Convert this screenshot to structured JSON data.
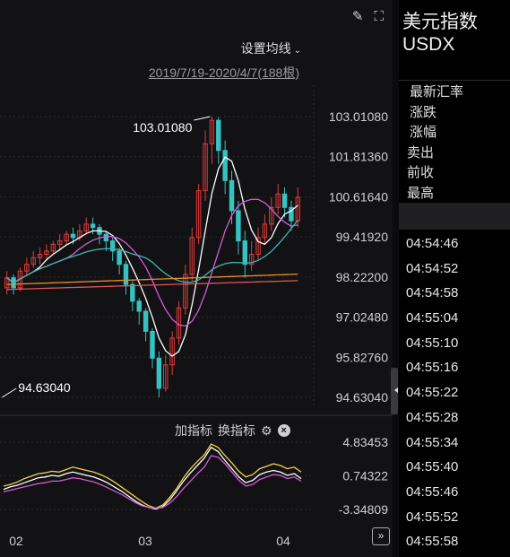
{
  "toolbar": {
    "ma_setting_label": "设置均线",
    "range_label": "2019/7/19-2020/4/7(188根)",
    "draw_icon": "pen-icon",
    "fullscreen_icon": "fullscreen-icon",
    "pin_icon": "pin-icon"
  },
  "sub_toolbar": {
    "add_indicator": "加指标",
    "change_indicator": "换指标",
    "settings_icon": "gear-icon",
    "close_icon": "close-icon"
  },
  "instrument": {
    "name_zh": "美元指数",
    "code": "USDX"
  },
  "quote_labels": [
    "最新汇率",
    "涨跌",
    "涨幅",
    "卖出",
    "前收",
    "最高"
  ],
  "time_list": [
    "04:54:46",
    "04:54:52",
    "04:54:58",
    "04:55:04",
    "04:55:10",
    "04:55:16",
    "04:55:22",
    "04:55:28",
    "04:55:34",
    "04:55:40",
    "04:55:46",
    "04:55:52",
    "04:55:58"
  ],
  "colors": {
    "up": "#e23b3b",
    "down": "#37c2c2",
    "ma_white": "#ffffff",
    "ma_magenta": "#d65ad8",
    "ma_teal": "#3fb5b0",
    "ma_orange": "#e8902a",
    "ma_red": "#e0555a",
    "sub_yellow": "#f0d050",
    "sub_white": "#ffffff",
    "sub_magenta": "#d65ad8"
  },
  "chart_data": [
    {
      "type": "candlestick",
      "y_ticks": [
        "103.01080",
        "101.81360",
        "100.61640",
        "99.41920",
        "98.22200",
        "97.02480",
        "95.82760",
        "94.63040"
      ],
      "ylim": [
        94.6304,
        103.0108
      ],
      "x_ticks": [
        "02",
        "03",
        "04"
      ],
      "annotations": [
        {
          "label": "103.01080",
          "value": 103.0108
        },
        {
          "label": "94.63040",
          "value": 94.6304
        }
      ],
      "candles": [
        [
          97.9,
          98.2,
          98.4,
          97.7
        ],
        [
          98.2,
          97.9,
          98.3,
          97.7
        ],
        [
          97.9,
          98.4,
          98.5,
          97.8
        ],
        [
          98.4,
          98.6,
          98.8,
          98.3
        ],
        [
          98.6,
          98.8,
          99.0,
          98.5
        ],
        [
          98.8,
          98.9,
          99.1,
          98.6
        ],
        [
          98.9,
          99.0,
          99.2,
          98.7
        ],
        [
          99.0,
          99.2,
          99.3,
          98.9
        ],
        [
          99.2,
          99.3,
          99.5,
          99.0
        ],
        [
          99.3,
          99.5,
          99.6,
          99.2
        ],
        [
          99.5,
          99.4,
          99.7,
          99.2
        ],
        [
          99.4,
          99.6,
          99.8,
          99.3
        ],
        [
          99.6,
          99.8,
          100.0,
          99.5
        ],
        [
          99.8,
          99.7,
          100.0,
          99.5
        ],
        [
          99.7,
          99.5,
          99.8,
          99.2
        ],
        [
          99.5,
          99.3,
          99.6,
          99.0
        ],
        [
          99.3,
          99.0,
          99.4,
          98.7
        ],
        [
          99.0,
          98.6,
          99.1,
          98.3
        ],
        [
          98.6,
          98.0,
          98.7,
          97.7
        ],
        [
          98.0,
          97.5,
          98.1,
          97.2
        ],
        [
          97.5,
          97.2,
          97.6,
          96.8
        ],
        [
          97.2,
          96.6,
          97.3,
          96.3
        ],
        [
          96.6,
          95.8,
          96.7,
          95.5
        ],
        [
          95.8,
          94.9,
          96.0,
          94.63
        ],
        [
          94.9,
          95.6,
          95.9,
          94.8
        ],
        [
          95.6,
          96.4,
          96.6,
          95.3
        ],
        [
          96.4,
          97.3,
          97.5,
          96.2
        ],
        [
          97.3,
          98.3,
          98.6,
          97.1
        ],
        [
          98.3,
          99.4,
          99.7,
          98.1
        ],
        [
          99.4,
          100.8,
          101.0,
          99.2
        ],
        [
          100.8,
          102.2,
          102.6,
          100.5
        ],
        [
          102.2,
          102.9,
          103.0108,
          101.6
        ],
        [
          102.9,
          102.0,
          103.0,
          101.6
        ],
        [
          102.0,
          101.1,
          102.3,
          100.7
        ],
        [
          101.1,
          100.2,
          101.4,
          99.8
        ],
        [
          100.2,
          99.3,
          100.5,
          98.9
        ],
        [
          99.3,
          98.6,
          99.6,
          98.2
        ],
        [
          98.6,
          98.9,
          99.3,
          98.4
        ],
        [
          98.9,
          99.4,
          99.7,
          98.7
        ],
        [
          99.4,
          99.8,
          100.1,
          99.2
        ],
        [
          99.8,
          100.3,
          100.6,
          99.6
        ],
        [
          100.3,
          100.7,
          101.0,
          100.1
        ],
        [
          100.7,
          100.3,
          100.9,
          100.0
        ],
        [
          100.3,
          99.9,
          100.5,
          99.6
        ],
        [
          99.9,
          100.6,
          100.9,
          99.7
        ]
      ]
    },
    {
      "type": "line",
      "y_ticks": [
        "4.83453",
        "0.74322",
        "-3.34809"
      ],
      "ylim": [
        -3.34809,
        4.83453
      ],
      "series": [
        {
          "values": [
            -0.5,
            -0.3,
            0.0,
            0.4,
            0.7,
            1.0,
            1.1,
            1.3,
            1.2,
            1.5,
            1.8,
            1.6,
            1.4,
            1.2,
            0.9,
            0.5,
            0.0,
            -0.6,
            -1.2,
            -1.8,
            -2.4,
            -2.9,
            -3.2,
            -2.8,
            -1.9,
            -0.8,
            0.5,
            1.6,
            2.5,
            3.3,
            4.6,
            4.2,
            3.2,
            2.3,
            1.3,
            0.6,
            0.9,
            1.6,
            1.9,
            2.2,
            2.0,
            1.6,
            1.8,
            1.2
          ]
        },
        {
          "values": [
            -0.9,
            -0.6,
            -0.4,
            -0.1,
            0.2,
            0.5,
            0.6,
            0.8,
            0.7,
            1.0,
            1.2,
            1.0,
            0.8,
            0.6,
            0.3,
            -0.1,
            -0.6,
            -1.1,
            -1.7,
            -2.3,
            -2.8,
            -3.1,
            -3.3,
            -3.0,
            -2.2,
            -1.1,
            0.1,
            1.1,
            2.0,
            2.9,
            4.2,
            3.7,
            2.6,
            1.6,
            0.6,
            -0.1,
            0.2,
            0.9,
            1.2,
            1.4,
            1.2,
            0.8,
            1.0,
            0.4
          ]
        },
        {
          "values": [
            -1.2,
            -1.0,
            -0.8,
            -0.6,
            -0.4,
            -0.2,
            -0.1,
            0.1,
            0.1,
            0.3,
            0.5,
            0.4,
            0.2,
            0.0,
            -0.3,
            -0.7,
            -1.1,
            -1.5,
            -2.0,
            -2.5,
            -2.9,
            -3.1,
            -3.2,
            -3.1,
            -2.6,
            -1.8,
            -0.8,
            0.1,
            1.0,
            1.8,
            3.2,
            3.0,
            2.2,
            1.2,
            0.2,
            -0.5,
            -0.3,
            0.3,
            0.6,
            0.9,
            0.8,
            0.4,
            0.6,
            0.1
          ]
        }
      ]
    }
  ]
}
